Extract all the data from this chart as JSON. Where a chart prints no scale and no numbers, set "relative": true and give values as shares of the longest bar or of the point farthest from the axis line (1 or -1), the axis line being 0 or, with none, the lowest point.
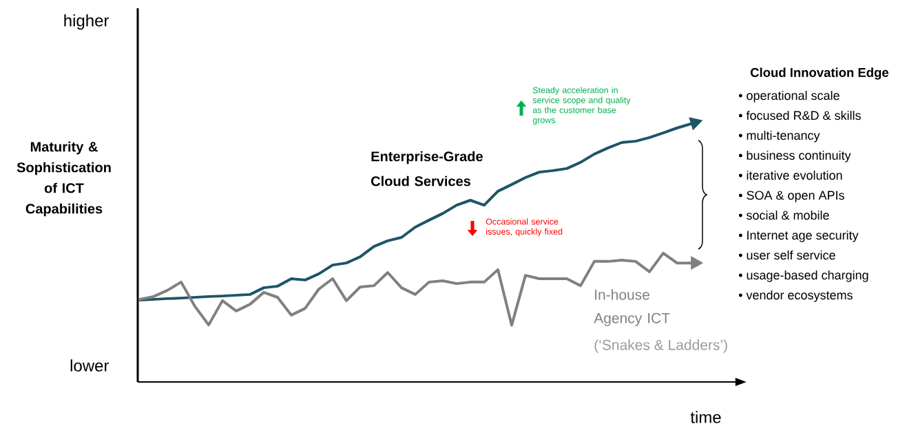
{
  "chart_data": {
    "type": "line",
    "relative": true,
    "xlabel": "time",
    "ylabel": "Maturity & Sophistication of ICT Capabilities",
    "categories": [
      null,
      null,
      null,
      null,
      null,
      null,
      null,
      null,
      null,
      null,
      null,
      null,
      null,
      null,
      null,
      null,
      null,
      null,
      null,
      null,
      null,
      null,
      null,
      null,
      null,
      null,
      null,
      null,
      null,
      null,
      null,
      null,
      null,
      null,
      null,
      null,
      null,
      null,
      null,
      null,
      null
    ],
    "series": [
      {
        "name": "Enterprise-Grade Cloud Services",
        "color": "#1d5567",
        "values": [
          0.317,
          0.32,
          0.323,
          0.325,
          0.328,
          0.331,
          0.333,
          0.336,
          0.339,
          0.365,
          0.371,
          0.4,
          0.395,
          0.419,
          0.453,
          0.461,
          0.485,
          0.525,
          0.547,
          0.56,
          0.6,
          0.627,
          0.653,
          0.685,
          0.704,
          0.685,
          0.739,
          0.765,
          0.792,
          0.813,
          0.819,
          0.827,
          0.851,
          0.883,
          0.907,
          0.928,
          0.933,
          0.947,
          0.965,
          0.984,
          1.0
        ]
      },
      {
        "name": "In-house Agency ICT",
        "color": "#808080",
        "values": [
          0.32,
          0.331,
          0.355,
          0.387,
          0.293,
          0.221,
          0.315,
          0.275,
          0.301,
          0.347,
          0.328,
          0.259,
          0.285,
          0.36,
          0.4,
          0.315,
          0.368,
          0.373,
          0.424,
          0.365,
          0.339,
          0.387,
          0.392,
          0.381,
          0.387,
          0.387,
          0.435,
          0.22,
          0.413,
          0.4,
          0.4,
          0.4,
          0.373,
          0.467,
          0.467,
          0.472,
          0.467,
          0.427,
          0.499,
          0.461,
          0.461
        ]
      }
    ],
    "annotations": [
      "higher",
      "lower",
      "Steady acceleration in service scope and quality as the customer base grows",
      "Occasional service issues, quickly fixed",
      "(‘Snakes & Ladders’)",
      "Cloud Innovation Edge",
      "• operational scale",
      "• focused R&D & skills",
      "• multi-tenancy",
      "• business continuity",
      "• iterative evolution",
      "• SOA & open APIs",
      "• social & mobile",
      "• Internet age security",
      "• user self service",
      "• usage-based charging",
      "• vendor ecosystems"
    ]
  }
}
